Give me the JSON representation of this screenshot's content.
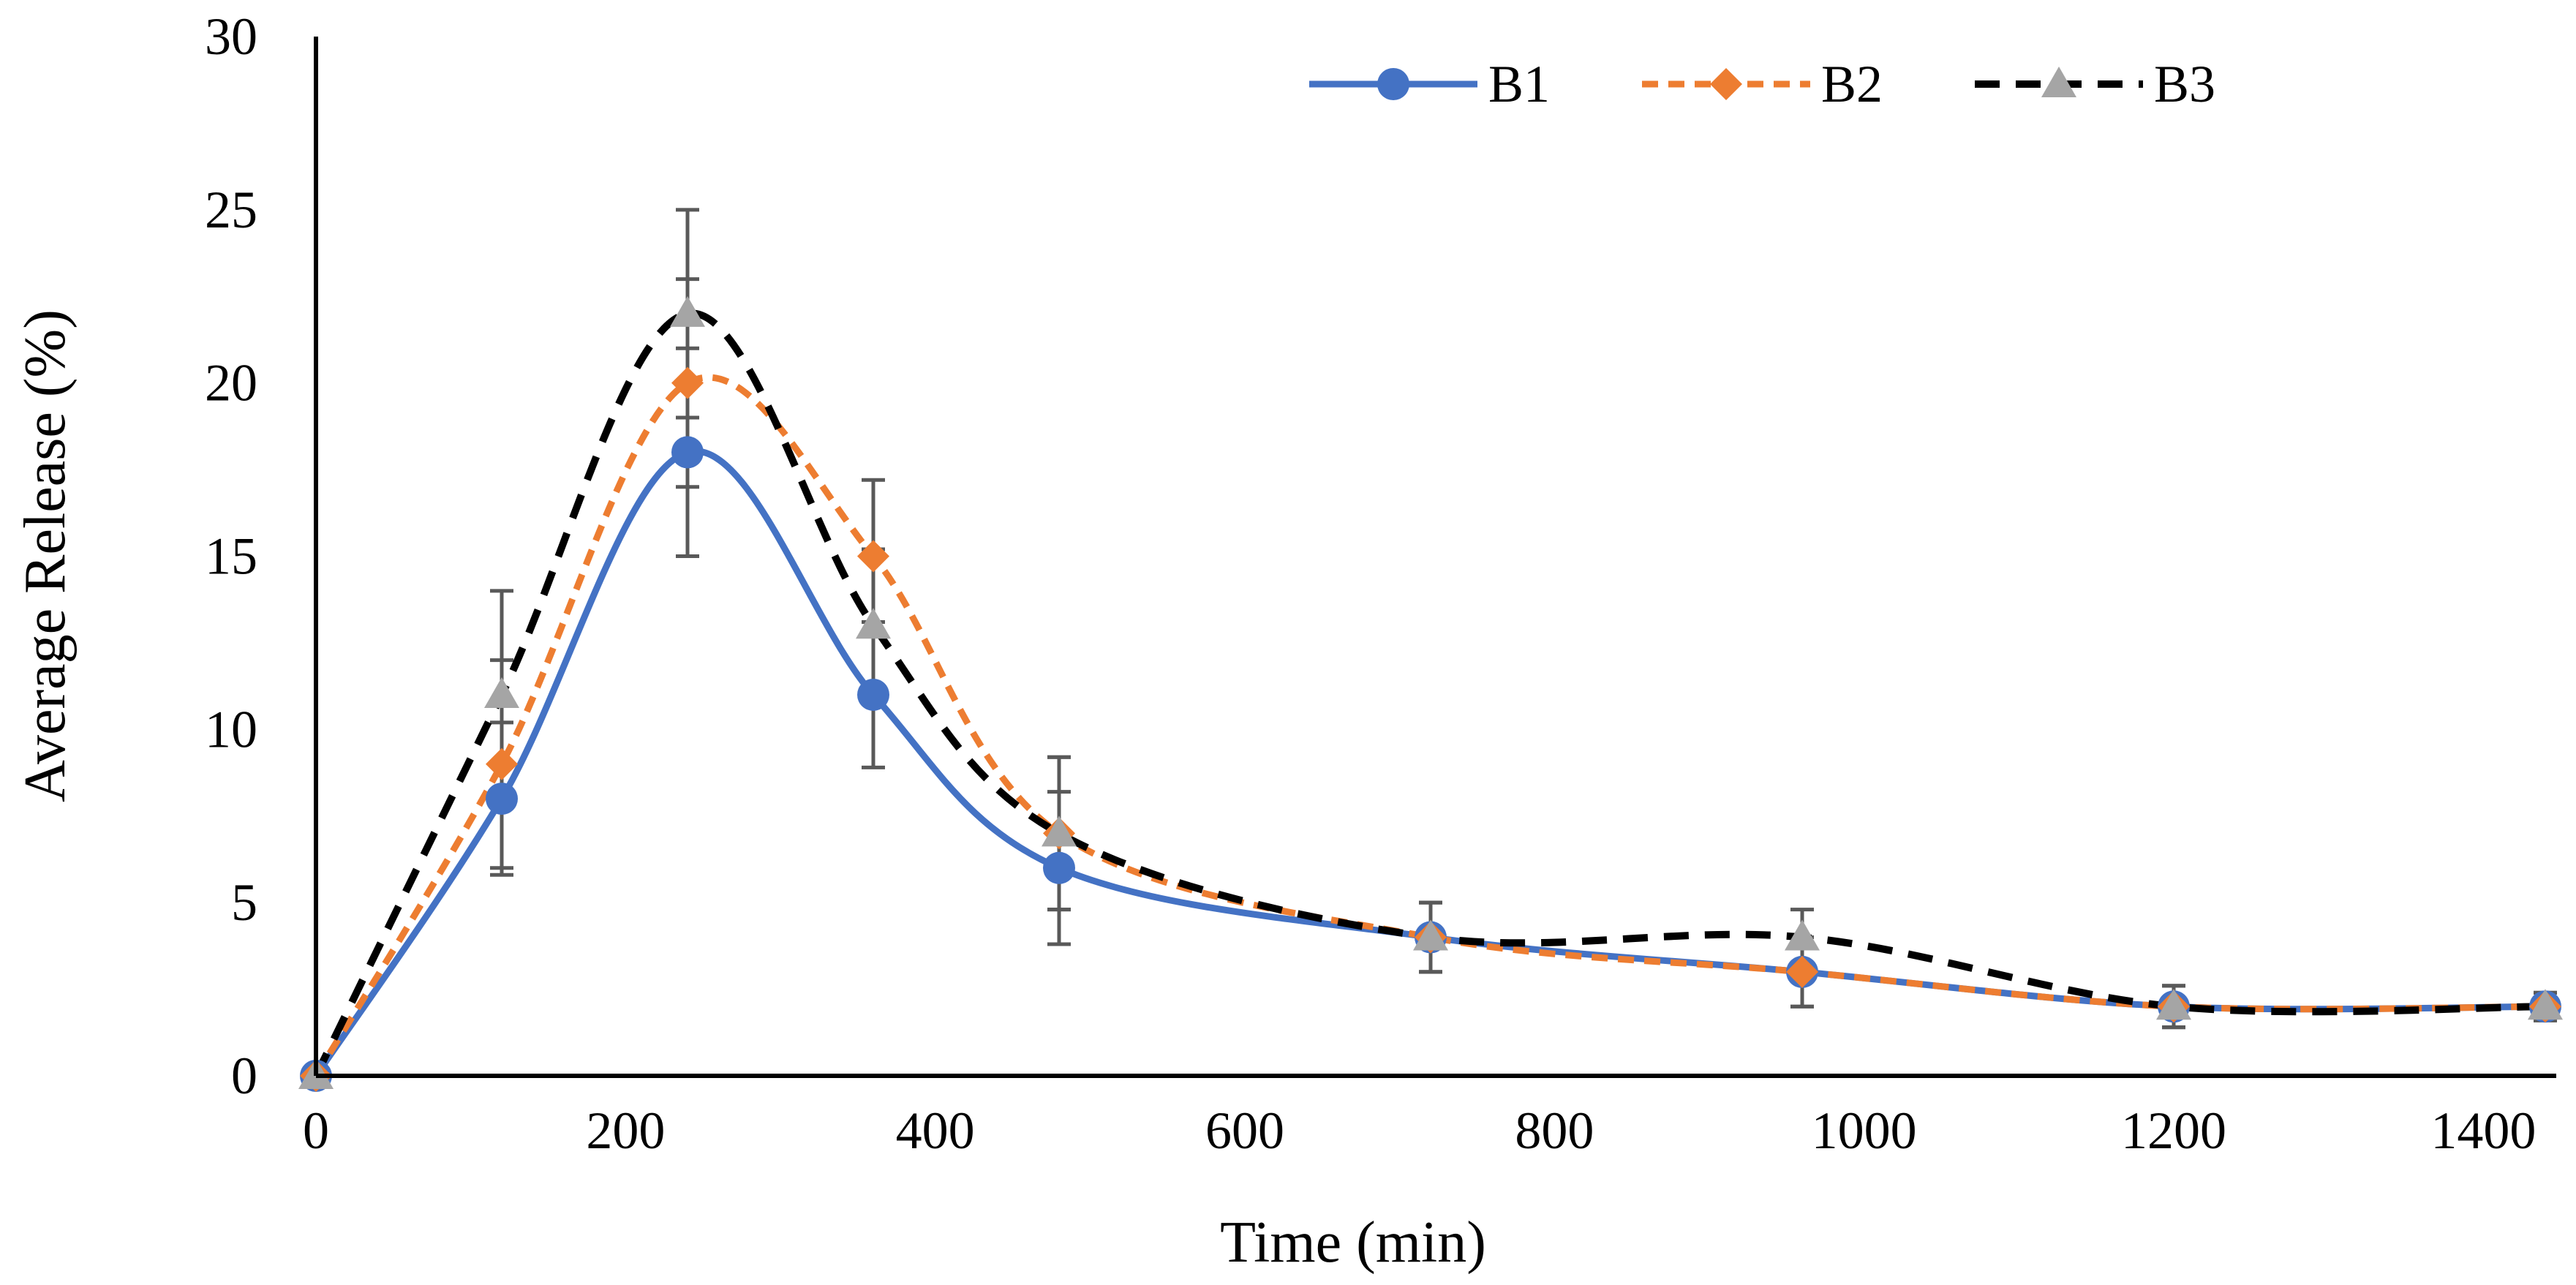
{
  "chart_data": {
    "type": "line",
    "title": "",
    "xlabel": "Time (min)",
    "ylabel": "Average Release (%)",
    "xlim": [
      0,
      1440
    ],
    "ylim": [
      0,
      30
    ],
    "xticks": [
      0,
      200,
      400,
      600,
      800,
      1000,
      1200,
      1400
    ],
    "yticks": [
      0,
      5,
      10,
      15,
      20,
      25,
      30
    ],
    "grid": false,
    "legend_position": "top-right",
    "x": [
      0,
      120,
      240,
      360,
      480,
      720,
      960,
      1200,
      1440
    ],
    "series": [
      {
        "name": "B1",
        "color": "#4472C4",
        "line_style": "solid",
        "marker": "circle",
        "values": [
          0,
          8,
          18,
          11,
          6,
          4,
          3,
          2,
          2
        ],
        "error": [
          0,
          2.2,
          3,
          2.1,
          2.2,
          1,
          1,
          0.6,
          0.4
        ]
      },
      {
        "name": "B2",
        "color": "#ED7D31",
        "line_style": "dashed",
        "marker": "diamond",
        "values": [
          0,
          9,
          20,
          15,
          7,
          4,
          3,
          2,
          2
        ],
        "error": [
          0,
          3,
          3,
          2.2,
          2.2,
          1,
          1,
          0.6,
          0.4
        ]
      },
      {
        "name": "B3",
        "color": "#000000",
        "marker_color": "#A5A5A5",
        "line_style": "dashed",
        "marker": "triangle",
        "values": [
          0,
          11,
          22,
          13,
          7,
          4,
          4,
          2,
          2
        ],
        "error": [
          0,
          3,
          3,
          2.2,
          2.2,
          1,
          0.8,
          0.6,
          0.4
        ]
      }
    ]
  }
}
